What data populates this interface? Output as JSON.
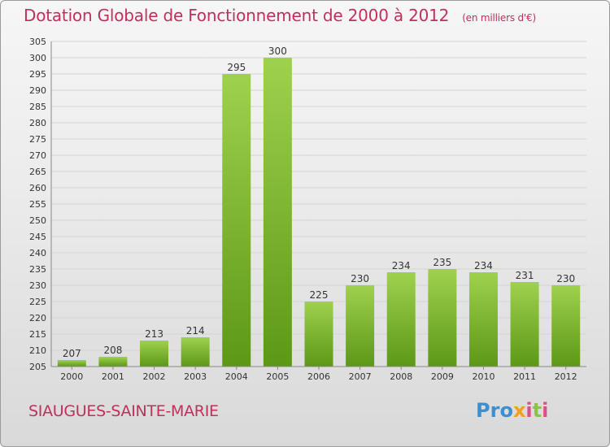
{
  "header": {
    "title": "Dotation Globale de Fonctionnement de 2000 à 2012",
    "unit": "(en milliers d'€)"
  },
  "footer": {
    "commune": "SIAUGUES-SAINTE-MARIE",
    "logo_text": "Proxiti"
  },
  "colors": {
    "accent": "#c0305a",
    "bar_light": "#9ccf4a",
    "bar_dark": "#5f9a18"
  },
  "chart_data": {
    "type": "bar",
    "title": "Dotation Globale de Fonctionnement de 2000 à 2012",
    "subtitle": "(en milliers d'€)",
    "xlabel": "",
    "ylabel": "",
    "categories": [
      "2000",
      "2001",
      "2002",
      "2003",
      "2004",
      "2005",
      "2006",
      "2007",
      "2008",
      "2009",
      "2010",
      "2011",
      "2012"
    ],
    "values": [
      207,
      208,
      213,
      214,
      295,
      300,
      225,
      230,
      234,
      235,
      234,
      231,
      230
    ],
    "ylim": [
      205,
      305
    ],
    "ytick_step": 5,
    "grid": true
  }
}
